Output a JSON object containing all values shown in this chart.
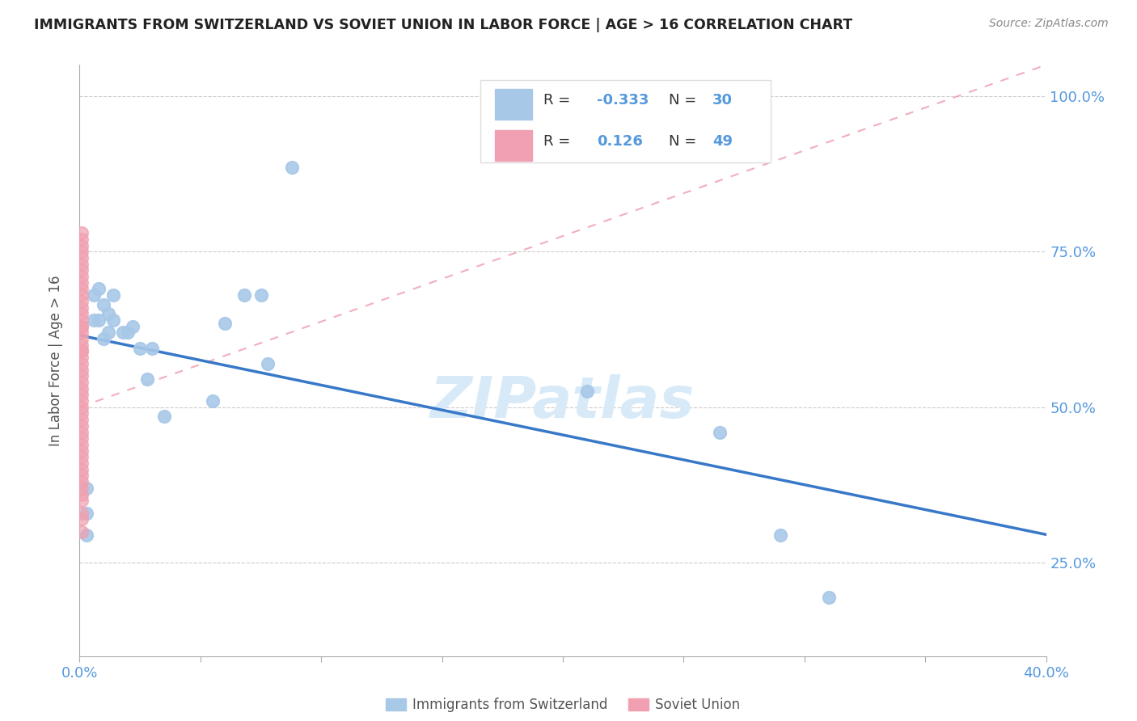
{
  "title": "IMMIGRANTS FROM SWITZERLAND VS SOVIET UNION IN LABOR FORCE | AGE > 16 CORRELATION CHART",
  "source": "Source: ZipAtlas.com",
  "ylabel": "In Labor Force | Age > 16",
  "xlim": [
    0.0,
    0.4
  ],
  "ylim": [
    0.1,
    1.05
  ],
  "xticks": [
    0.0,
    0.05,
    0.1,
    0.15,
    0.2,
    0.25,
    0.3,
    0.35,
    0.4
  ],
  "xtick_labels": [
    "0.0%",
    "",
    "",
    "",
    "",
    "",
    "",
    "",
    "40.0%"
  ],
  "yticks": [
    0.25,
    0.5,
    0.75,
    1.0
  ],
  "ytick_labels": [
    "25.0%",
    "50.0%",
    "75.0%",
    "100.0%"
  ],
  "switzerland_x": [
    0.003,
    0.003,
    0.003,
    0.006,
    0.006,
    0.008,
    0.008,
    0.01,
    0.01,
    0.012,
    0.012,
    0.014,
    0.014,
    0.018,
    0.02,
    0.022,
    0.025,
    0.028,
    0.03,
    0.035,
    0.055,
    0.06,
    0.068,
    0.075,
    0.078,
    0.088,
    0.21,
    0.265,
    0.29,
    0.31
  ],
  "switzerland_y": [
    0.295,
    0.33,
    0.37,
    0.64,
    0.68,
    0.64,
    0.69,
    0.61,
    0.665,
    0.62,
    0.65,
    0.64,
    0.68,
    0.62,
    0.62,
    0.63,
    0.595,
    0.545,
    0.595,
    0.485,
    0.51,
    0.635,
    0.68,
    0.68,
    0.57,
    0.885,
    0.525,
    0.46,
    0.295,
    0.195
  ],
  "soviet_x": [
    0.001,
    0.001,
    0.001,
    0.001,
    0.001,
    0.001,
    0.001,
    0.001,
    0.001,
    0.001,
    0.001,
    0.001,
    0.001,
    0.001,
    0.001,
    0.001,
    0.001,
    0.001,
    0.001,
    0.001,
    0.001,
    0.001,
    0.001,
    0.001,
    0.001,
    0.001,
    0.001,
    0.001,
    0.001,
    0.001,
    0.001,
    0.001,
    0.001,
    0.001,
    0.001,
    0.001,
    0.001,
    0.001,
    0.001,
    0.001,
    0.001,
    0.001,
    0.001,
    0.001,
    0.001,
    0.001,
    0.001,
    0.001,
    0.001
  ],
  "soviet_y": [
    0.78,
    0.77,
    0.76,
    0.75,
    0.74,
    0.73,
    0.72,
    0.71,
    0.7,
    0.69,
    0.68,
    0.67,
    0.66,
    0.65,
    0.64,
    0.63,
    0.63,
    0.62,
    0.61,
    0.6,
    0.59,
    0.59,
    0.58,
    0.57,
    0.56,
    0.55,
    0.54,
    0.53,
    0.52,
    0.51,
    0.5,
    0.49,
    0.48,
    0.47,
    0.46,
    0.45,
    0.44,
    0.43,
    0.42,
    0.41,
    0.4,
    0.39,
    0.38,
    0.37,
    0.36,
    0.35,
    0.33,
    0.32,
    0.3
  ],
  "switzerland_R": -0.333,
  "switzerland_N": 30,
  "soviet_R": 0.126,
  "soviet_N": 49,
  "switzerland_color": "#a8c8e8",
  "soviet_color": "#f0a0b0",
  "trendline_switzerland_color": "#3878c8",
  "trendline_soviet_color": "#f0a0b0",
  "watermark": "ZIPatlas",
  "watermark_color": "#d8eaf8",
  "background_color": "#ffffff",
  "grid_color": "#cccccc",
  "tick_color": "#5599dd",
  "legend_box_color": "#eeeeee",
  "legend_box_edge": "#dddddd",
  "soviet_trendline_x0": 0.0,
  "soviet_trendline_y0": 0.5,
  "soviet_trendline_x1": 0.4,
  "soviet_trendline_y1": 1.05
}
